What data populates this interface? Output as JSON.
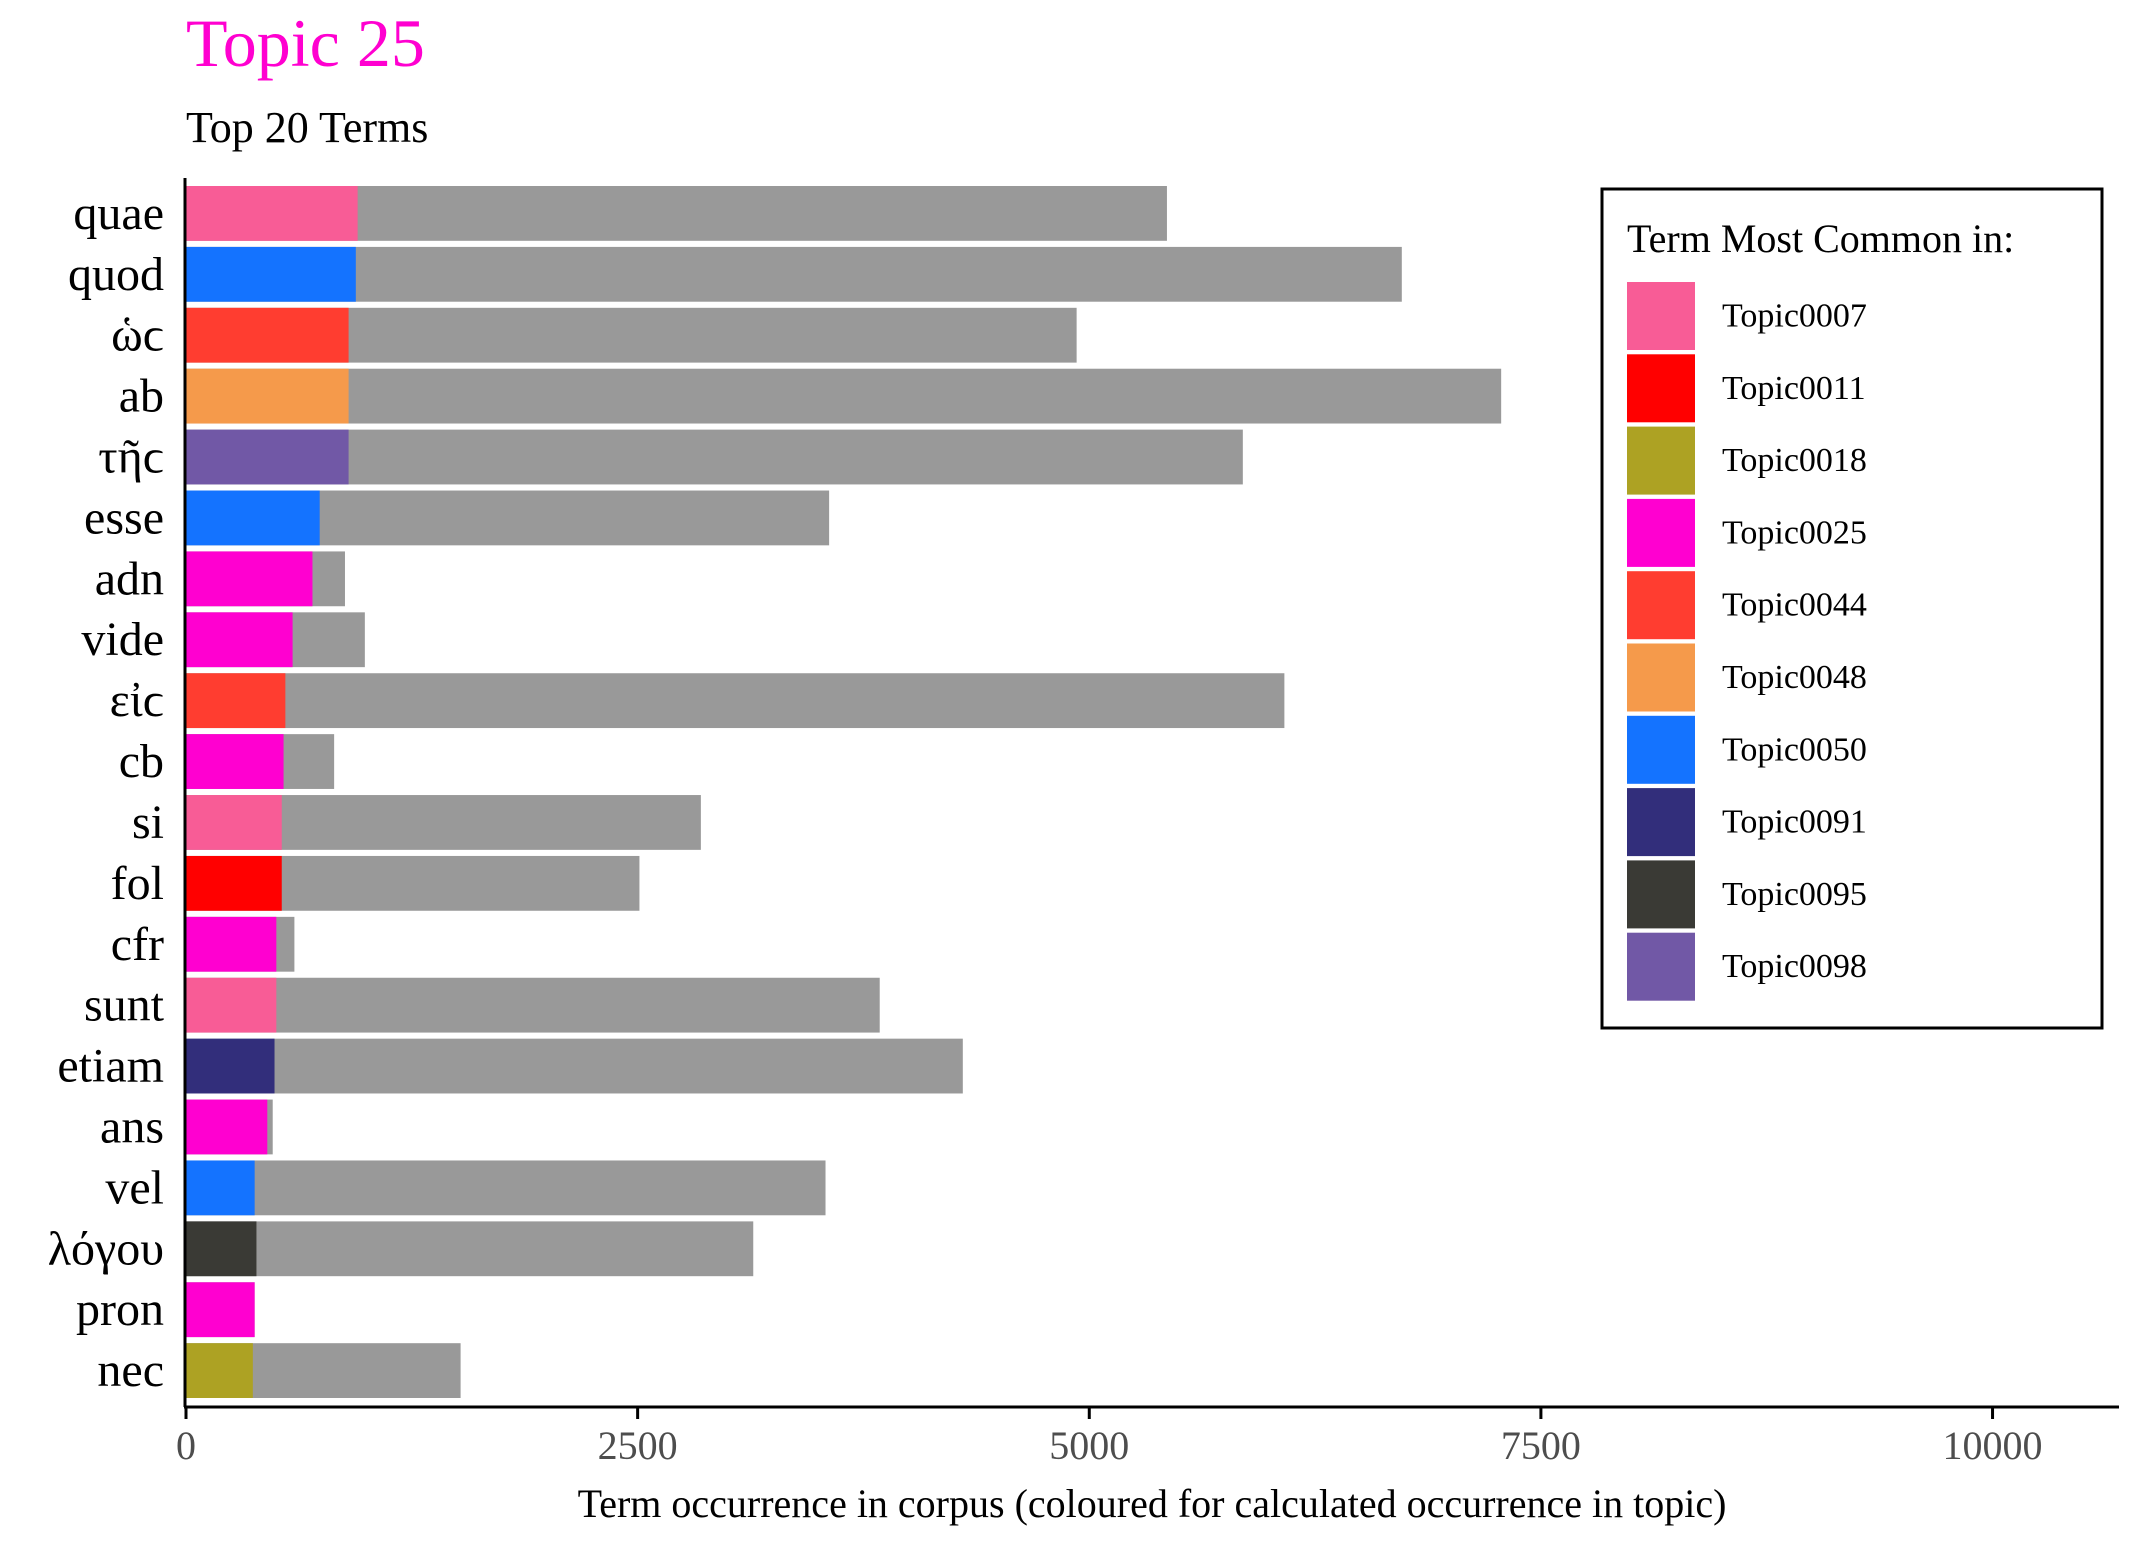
{
  "chart_data": {
    "type": "bar",
    "orientation": "horizontal",
    "stacked": "overlay",
    "title": "Topic 25",
    "subtitle": "Top 20 Terms",
    "xlabel": "Term occurrence in corpus (coloured for calculated occurrence in topic)",
    "ylabel": "",
    "xlim": [
      0,
      10700
    ],
    "x_ticks": [
      0,
      2500,
      5000,
      7500,
      10000
    ],
    "x_tick_labels": [
      "0",
      "2500",
      "5000",
      "7500",
      "10000"
    ],
    "grid": false,
    "legend": {
      "title": "Term Most Common in:",
      "position": "top-right",
      "entries": [
        {
          "label": "Topic0007",
          "color": "#F85C96"
        },
        {
          "label": "Topic0011",
          "color": "#FF0000"
        },
        {
          "label": "Topic0018",
          "color": "#ADA223"
        },
        {
          "label": "Topic0025",
          "color": "#FF00D0"
        },
        {
          "label": "Topic0044",
          "color": "#FF3D30"
        },
        {
          "label": "Topic0048",
          "color": "#F59A4B"
        },
        {
          "label": "Topic0050",
          "color": "#1473FF"
        },
        {
          "label": "Topic0091",
          "color": "#322E7B"
        },
        {
          "label": "Topic0095",
          "color": "#3A3A35"
        },
        {
          "label": "Topic0098",
          "color": "#7158A6"
        }
      ]
    },
    "corpus_bar_color": "#999999",
    "title_color": "#FF00D0",
    "categories": [
      "quae",
      "quod",
      "ὡϲ",
      "ab",
      "τῆϲ",
      "esse",
      "adn",
      "vide",
      "εἰϲ",
      "cb",
      "si",
      "fol",
      "cfr",
      "sunt",
      "etiam",
      "ans",
      "vel",
      "λόγου",
      "pron",
      "nec"
    ],
    "series": [
      {
        "name": "corpus",
        "values": [
          5430,
          6730,
          4930,
          7280,
          5850,
          3560,
          880,
          990,
          6080,
          820,
          2850,
          2510,
          600,
          3840,
          4300,
          480,
          3540,
          3140,
          380,
          1520
        ]
      },
      {
        "name": "topic",
        "values": [
          950,
          940,
          900,
          900,
          900,
          740,
          700,
          590,
          550,
          540,
          530,
          530,
          500,
          500,
          490,
          450,
          380,
          390,
          380,
          370
        ],
        "topics": [
          "Topic0007",
          "Topic0050",
          "Topic0044",
          "Topic0048",
          "Topic0098",
          "Topic0050",
          "Topic0025",
          "Topic0025",
          "Topic0044",
          "Topic0025",
          "Topic0007",
          "Topic0011",
          "Topic0025",
          "Topic0007",
          "Topic0091",
          "Topic0025",
          "Topic0050",
          "Topic0095",
          "Topic0025",
          "Topic0018"
        ]
      }
    ]
  }
}
